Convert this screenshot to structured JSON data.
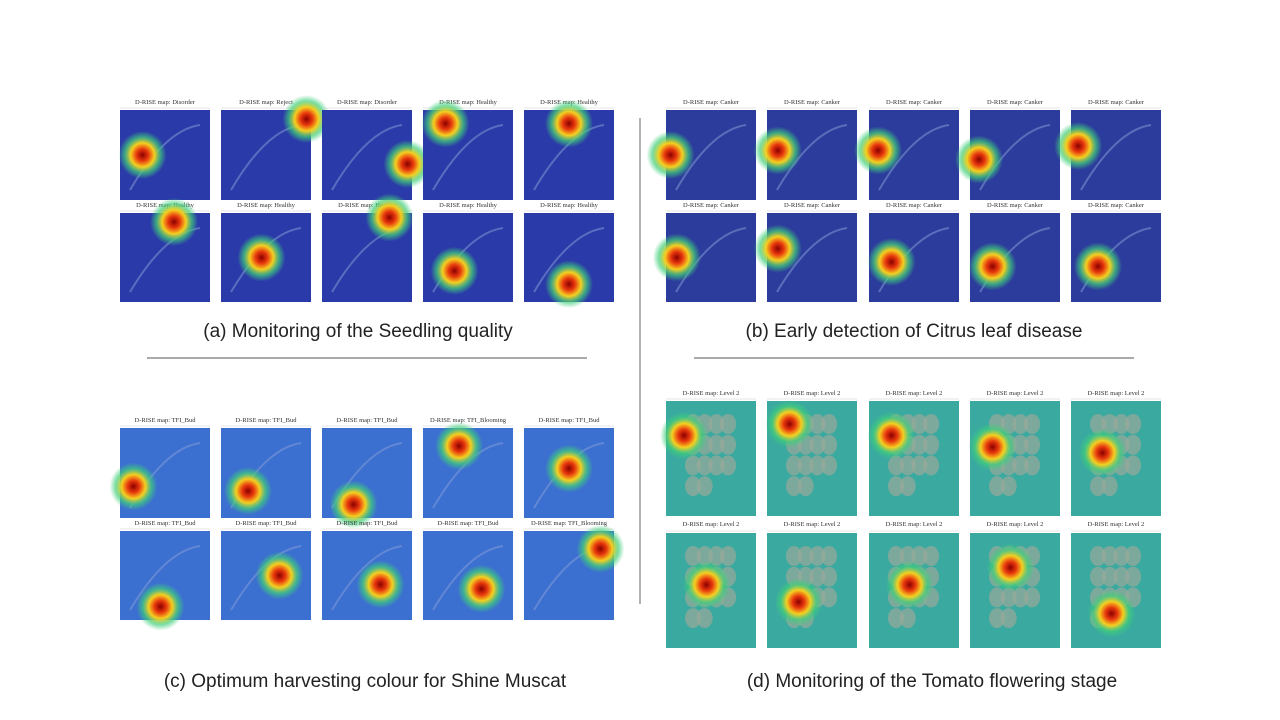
{
  "panels": [
    {
      "caption": "(a) Monitoring of the Seedling quality",
      "rows": [
        [
          "D-RISE map: Disorder",
          "D-RISE map: Reject",
          "D-RISE map: Disorder",
          "D-RISE map: Healthy",
          "D-RISE map: Healthy"
        ],
        [
          "D-RISE map: Healthy",
          "D-RISE map: Healthy",
          "D-RISE map: Healthy",
          "D-RISE map: Healthy",
          "D-RISE map: Healthy"
        ]
      ]
    },
    {
      "caption": "(b) Early detection of Citrus leaf disease",
      "rows": [
        [
          "D-RISE map: Canker",
          "D-RISE map: Canker",
          "D-RISE map: Canker",
          "D-RISE map: Canker",
          "D-RISE map: Canker"
        ],
        [
          "D-RISE map: Canker",
          "D-RISE map: Canker",
          "D-RISE map: Canker",
          "D-RISE map: Canker",
          "D-RISE map: Canker"
        ]
      ]
    },
    {
      "caption": "(c) Optimum harvesting colour for Shine Muscat",
      "rows": [
        [
          "D-RISE map: TFI_Bud",
          "D-RISE map: TFI_Bud",
          "D-RISE map: TFI_Bud",
          "D-RISE map: TFI_Blooming",
          "D-RISE map: TFI_Bud"
        ],
        [
          "D-RISE map: TFI_Bud",
          "D-RISE map: TFI_Bud",
          "D-RISE map: TFI_Bud",
          "D-RISE map: TFI_Bud",
          "D-RISE map: TFI_Blooming"
        ]
      ]
    },
    {
      "caption": "(d) Monitoring of the Tomato flowering stage",
      "rows": [
        [
          "D-RISE map: Level 2",
          "D-RISE map: Level 2",
          "D-RISE map: Level 2",
          "D-RISE map: Level 2",
          "D-RISE map: Level 2"
        ],
        [
          "D-RISE map: Level 2",
          "D-RISE map: Level 2",
          "D-RISE map: Level 2",
          "D-RISE map: Level 2",
          "D-RISE map: Level 2"
        ]
      ]
    }
  ]
}
